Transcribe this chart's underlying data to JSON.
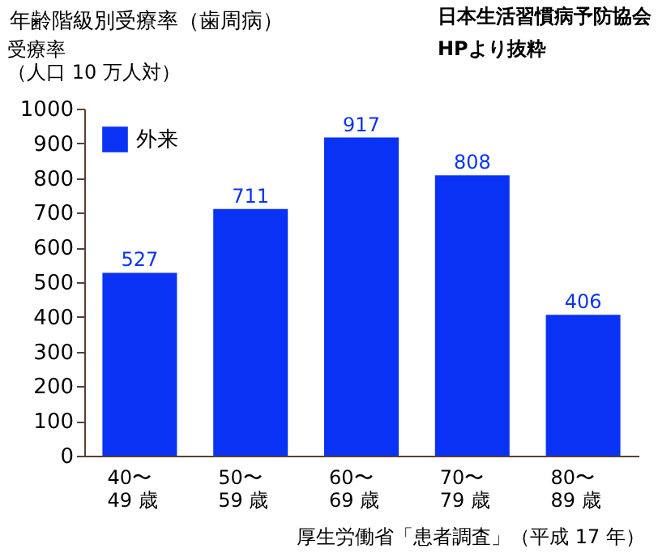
{
  "chart_data": {
    "type": "bar",
    "title": "年齢階級別受療率（歯周病）",
    "ylabel": "受療率（人口 10 万人対）",
    "categories": [
      "40〜\n  49 歳",
      "50〜\n  59 歳",
      "60〜\n  69 歳",
      "70〜\n  79 歳",
      "80〜\n  89 歳"
    ],
    "series": [
      {
        "name": "外来",
        "color": "#0a32f5",
        "values": [
          527,
          711,
          917,
          808,
          406
        ]
      }
    ],
    "ylim": [
      0,
      1000
    ],
    "yticks": [
      0,
      100,
      200,
      300,
      400,
      500,
      600,
      700,
      800,
      900,
      {
        "value": 1000,
        "label": "1000"
      }
    ],
    "data_labels": true,
    "legend": "top left",
    "grid": false,
    "annotations": [
      "日本生活習慣病予防協会\nHPより抜粋",
      "厚生労働省「患者調査」（平成 17 年）"
    ]
  }
}
